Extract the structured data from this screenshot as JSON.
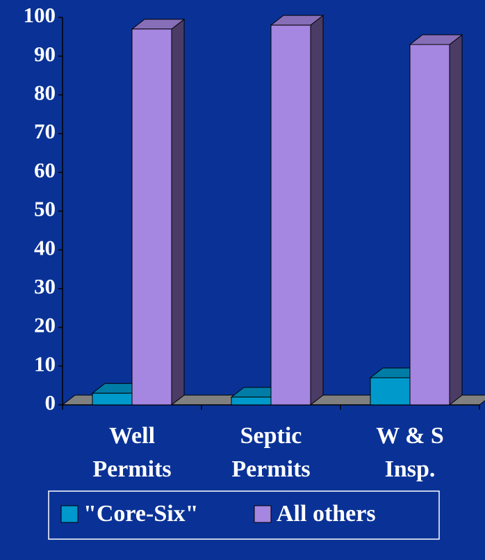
{
  "chart_data": {
    "type": "bar3d",
    "categories": [
      "Well Permits",
      "Septic Permits",
      "W & S Insp."
    ],
    "series": [
      {
        "name": "\"Core-Six\"",
        "color": "#0099cc",
        "values": [
          3,
          2,
          7
        ]
      },
      {
        "name": "All others",
        "color": "#a586e0",
        "values": [
          97,
          98,
          93
        ]
      }
    ],
    "ylim": [
      0,
      100
    ],
    "yticks": [
      0,
      10,
      20,
      30,
      40,
      50,
      60,
      70,
      80,
      90,
      100
    ],
    "legend": "bottom"
  }
}
